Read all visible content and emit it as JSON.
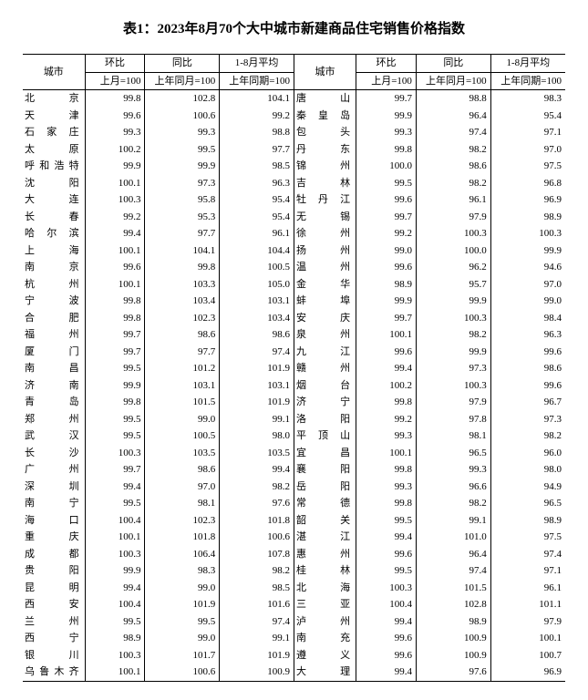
{
  "title": "表1：2023年8月70个大中城市新建商品住宅销售价格指数",
  "headers": {
    "city": "城市",
    "mom": "环比",
    "yoy": "同比",
    "avg": "1-8月平均",
    "mom_base": "上月=100",
    "yoy_base": "上年同月=100",
    "avg_base": "上年同期=100"
  },
  "left_rows": [
    {
      "c": "北　　京",
      "m": "99.8",
      "y": "102.8",
      "a": "104.1"
    },
    {
      "c": "天　　津",
      "m": "99.6",
      "y": "100.6",
      "a": "99.2"
    },
    {
      "c": "石 家 庄",
      "m": "99.3",
      "y": "99.3",
      "a": "98.8"
    },
    {
      "c": "太　　原",
      "m": "100.2",
      "y": "99.5",
      "a": "97.7"
    },
    {
      "c": "呼和浩特",
      "m": "99.9",
      "y": "99.9",
      "a": "98.5"
    },
    {
      "c": "沈　　阳",
      "m": "100.1",
      "y": "97.3",
      "a": "96.3"
    },
    {
      "c": "大　　连",
      "m": "100.3",
      "y": "95.8",
      "a": "95.4"
    },
    {
      "c": "长　　春",
      "m": "99.2",
      "y": "95.3",
      "a": "95.4"
    },
    {
      "c": "哈 尔 滨",
      "m": "99.4",
      "y": "97.7",
      "a": "96.1"
    },
    {
      "c": "上　　海",
      "m": "100.1",
      "y": "104.1",
      "a": "104.4"
    },
    {
      "c": "南　　京",
      "m": "99.6",
      "y": "99.8",
      "a": "100.5"
    },
    {
      "c": "杭　　州",
      "m": "100.1",
      "y": "103.3",
      "a": "105.0"
    },
    {
      "c": "宁　　波",
      "m": "99.8",
      "y": "103.4",
      "a": "103.1"
    },
    {
      "c": "合　　肥",
      "m": "99.8",
      "y": "102.3",
      "a": "103.4"
    },
    {
      "c": "福　　州",
      "m": "99.7",
      "y": "98.6",
      "a": "98.6"
    },
    {
      "c": "厦　　门",
      "m": "99.7",
      "y": "97.7",
      "a": "97.4"
    },
    {
      "c": "南　　昌",
      "m": "99.5",
      "y": "101.2",
      "a": "101.9"
    },
    {
      "c": "济　　南",
      "m": "99.9",
      "y": "103.1",
      "a": "103.1"
    },
    {
      "c": "青　　岛",
      "m": "99.8",
      "y": "101.5",
      "a": "101.9"
    },
    {
      "c": "郑　　州",
      "m": "99.5",
      "y": "99.0",
      "a": "99.1"
    },
    {
      "c": "武　　汉",
      "m": "99.5",
      "y": "100.5",
      "a": "98.0"
    },
    {
      "c": "长　　沙",
      "m": "100.3",
      "y": "103.5",
      "a": "103.5"
    },
    {
      "c": "广　　州",
      "m": "99.7",
      "y": "98.6",
      "a": "99.4"
    },
    {
      "c": "深　　圳",
      "m": "99.4",
      "y": "97.0",
      "a": "98.2"
    },
    {
      "c": "南　　宁",
      "m": "99.5",
      "y": "98.1",
      "a": "97.6"
    },
    {
      "c": "海　　口",
      "m": "100.4",
      "y": "102.3",
      "a": "101.8"
    },
    {
      "c": "重　　庆",
      "m": "100.1",
      "y": "101.8",
      "a": "100.6"
    },
    {
      "c": "成　　都",
      "m": "100.3",
      "y": "106.4",
      "a": "107.8"
    },
    {
      "c": "贵　　阳",
      "m": "99.9",
      "y": "98.3",
      "a": "98.2"
    },
    {
      "c": "昆　　明",
      "m": "99.4",
      "y": "99.0",
      "a": "98.5"
    },
    {
      "c": "西　　安",
      "m": "100.4",
      "y": "101.9",
      "a": "101.6"
    },
    {
      "c": "兰　　州",
      "m": "99.5",
      "y": "99.5",
      "a": "97.4"
    },
    {
      "c": "西　　宁",
      "m": "98.9",
      "y": "99.0",
      "a": "99.1"
    },
    {
      "c": "银　　川",
      "m": "100.3",
      "y": "101.7",
      "a": "101.9"
    },
    {
      "c": "乌鲁木齐",
      "m": "100.1",
      "y": "100.6",
      "a": "100.9"
    }
  ],
  "right_rows": [
    {
      "c": "唐　　山",
      "m": "99.7",
      "y": "98.8",
      "a": "98.3"
    },
    {
      "c": "秦 皇 岛",
      "m": "99.9",
      "y": "96.4",
      "a": "95.4"
    },
    {
      "c": "包　　头",
      "m": "99.3",
      "y": "97.4",
      "a": "97.1"
    },
    {
      "c": "丹　　东",
      "m": "99.8",
      "y": "98.2",
      "a": "97.0"
    },
    {
      "c": "锦　　州",
      "m": "100.0",
      "y": "98.6",
      "a": "97.5"
    },
    {
      "c": "吉　　林",
      "m": "99.5",
      "y": "98.2",
      "a": "96.8"
    },
    {
      "c": "牡 丹 江",
      "m": "99.6",
      "y": "96.1",
      "a": "96.9"
    },
    {
      "c": "无　　锡",
      "m": "99.7",
      "y": "97.9",
      "a": "98.9"
    },
    {
      "c": "徐　　州",
      "m": "99.2",
      "y": "100.3",
      "a": "100.3"
    },
    {
      "c": "扬　　州",
      "m": "99.0",
      "y": "100.0",
      "a": "99.9"
    },
    {
      "c": "温　　州",
      "m": "99.6",
      "y": "96.2",
      "a": "94.6"
    },
    {
      "c": "金　　华",
      "m": "98.9",
      "y": "95.7",
      "a": "97.0"
    },
    {
      "c": "蚌　　埠",
      "m": "99.9",
      "y": "99.9",
      "a": "99.0"
    },
    {
      "c": "安　　庆",
      "m": "99.7",
      "y": "100.3",
      "a": "98.4"
    },
    {
      "c": "泉　　州",
      "m": "100.1",
      "y": "98.2",
      "a": "96.3"
    },
    {
      "c": "九　　江",
      "m": "99.6",
      "y": "99.9",
      "a": "99.6"
    },
    {
      "c": "赣　　州",
      "m": "99.4",
      "y": "97.3",
      "a": "98.6"
    },
    {
      "c": "烟　　台",
      "m": "100.2",
      "y": "100.3",
      "a": "99.6"
    },
    {
      "c": "济　　宁",
      "m": "99.8",
      "y": "97.9",
      "a": "96.7"
    },
    {
      "c": "洛　　阳",
      "m": "99.2",
      "y": "97.8",
      "a": "97.3"
    },
    {
      "c": "平 顶 山",
      "m": "99.3",
      "y": "98.1",
      "a": "98.2"
    },
    {
      "c": "宜　　昌",
      "m": "100.1",
      "y": "96.5",
      "a": "96.0"
    },
    {
      "c": "襄　　阳",
      "m": "99.8",
      "y": "99.3",
      "a": "98.0"
    },
    {
      "c": "岳　　阳",
      "m": "99.3",
      "y": "96.6",
      "a": "94.9"
    },
    {
      "c": "常　　德",
      "m": "99.8",
      "y": "98.2",
      "a": "96.5"
    },
    {
      "c": "韶　　关",
      "m": "99.5",
      "y": "99.1",
      "a": "98.9"
    },
    {
      "c": "湛　　江",
      "m": "99.4",
      "y": "101.0",
      "a": "97.5"
    },
    {
      "c": "惠　　州",
      "m": "99.6",
      "y": "96.4",
      "a": "97.4"
    },
    {
      "c": "桂　　林",
      "m": "99.5",
      "y": "97.4",
      "a": "97.1"
    },
    {
      "c": "北　　海",
      "m": "100.3",
      "y": "101.5",
      "a": "96.1"
    },
    {
      "c": "三　　亚",
      "m": "100.4",
      "y": "102.8",
      "a": "101.1"
    },
    {
      "c": "泸　　州",
      "m": "99.4",
      "y": "98.9",
      "a": "97.9"
    },
    {
      "c": "南　　充",
      "m": "99.6",
      "y": "100.9",
      "a": "100.1"
    },
    {
      "c": "遵　　义",
      "m": "99.6",
      "y": "100.9",
      "a": "100.7"
    },
    {
      "c": "大　　理",
      "m": "99.4",
      "y": "97.6",
      "a": "96.9"
    }
  ]
}
